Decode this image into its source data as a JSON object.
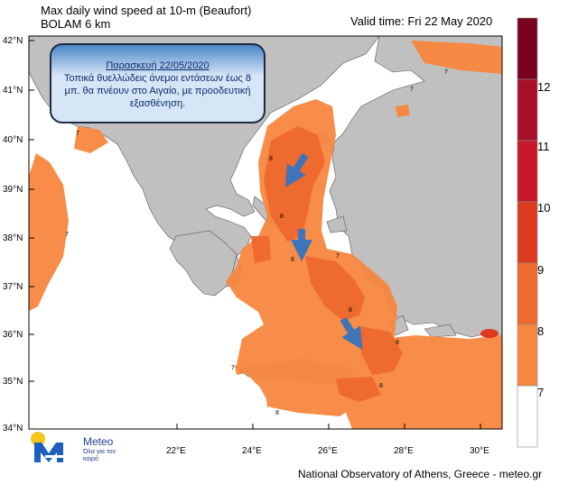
{
  "header": {
    "line1": "Max daily wind speed at 10-m (Beaufort)",
    "line2": "BOLAM 6 km",
    "valid_time": "Valid time: Fri 22 May 2020"
  },
  "callout": {
    "date": "Παρασκευή 22/05/2020",
    "message": "Τοπικά θυελλώδεις άνεμοι εντάσεων έως 8 μπ. θα πνέουν στο Αιγαίο, με προοδευτική εξασθένηση."
  },
  "map": {
    "lat_labels": [
      "42°N",
      "41°N",
      "40°N",
      "39°N",
      "38°N",
      "37°N",
      "36°N",
      "35°N",
      "34°N"
    ],
    "lon_labels": [
      "22°E",
      "24°E",
      "26°E",
      "28°E",
      "30°E"
    ],
    "contour_labels": [
      "7",
      "8"
    ],
    "colors": {
      "sea": "#ffffff",
      "land": "#c0c0c0",
      "bft7": "#f7873f",
      "bft8": "#ef6a2e",
      "bft9": "#e0502a",
      "arrow": "#3f74b8"
    }
  },
  "colorbar": {
    "levels": [
      "7",
      "8",
      "9",
      "10",
      "11",
      "12"
    ],
    "colors": [
      "#ffffff",
      "#f7873f",
      "#ef6a2e",
      "#dc3b1f",
      "#c8182a",
      "#a8102a",
      "#7a0020"
    ]
  },
  "logo": {
    "name": "Meteo",
    "slogan": "Όλα για τον καιρό"
  },
  "footer": "National Observatory of Athens, Greece - meteo.gr"
}
